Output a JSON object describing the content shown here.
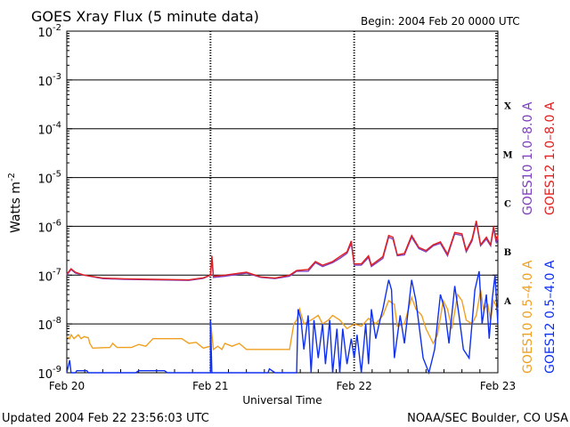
{
  "chart_data": {
    "type": "line",
    "title": "GOES Xray Flux (5 minute data)",
    "begin_label": "Begin:  2004 Feb 20 0000 UTC",
    "xlabel": "Universal Time",
    "ylabel": "Watts m",
    "ylabel_exp": "-2",
    "x_ticks": [
      "Feb 20",
      "Feb 21",
      "Feb 22",
      "Feb 23"
    ],
    "x_range_days": [
      0,
      3
    ],
    "y_scale": "log",
    "y_range": [
      1e-09,
      0.01
    ],
    "y_ticks": [
      {
        "value": 0.01,
        "base": "10",
        "exp": "-2"
      },
      {
        "value": 0.001,
        "base": "10",
        "exp": "-3"
      },
      {
        "value": 0.0001,
        "base": "10",
        "exp": "-4"
      },
      {
        "value": 1e-05,
        "base": "10",
        "exp": "-5"
      },
      {
        "value": 1e-06,
        "base": "10",
        "exp": "-6"
      },
      {
        "value": 1e-07,
        "base": "10",
        "exp": "-7"
      },
      {
        "value": 1e-08,
        "base": "10",
        "exp": "-8"
      },
      {
        "value": 1e-09,
        "base": "10",
        "exp": "-9"
      }
    ],
    "grid": true,
    "flare_classes": [
      {
        "label": "X",
        "value": 0.0003
      },
      {
        "label": "M",
        "value": 3e-05
      },
      {
        "label": "C",
        "value": 3e-06
      },
      {
        "label": "B",
        "value": 3e-07
      },
      {
        "label": "A",
        "value": 3e-08
      }
    ],
    "legend_right_1": [
      {
        "name": "GOES10 1.0–8.0 A",
        "color": "#8040c0"
      },
      {
        "name": "GOES12 1.0–8.0 A",
        "color": "#e02020"
      }
    ],
    "legend_right_2": [
      {
        "name": "GOES10 0.5–4.0 A",
        "color": "#f0a020"
      },
      {
        "name": "GOES12 0.5–4.0 A",
        "color": "#1030f0"
      }
    ],
    "series": [
      {
        "name": "GOES10 1.0–8.0 A",
        "color": "#8040c0",
        "points": [
          [
            0,
            1e-07
          ],
          [
            0.03,
            1.3e-07
          ],
          [
            0.06,
            1.1e-07
          ],
          [
            0.12,
            1e-07
          ],
          [
            0.25,
            8.5e-08
          ],
          [
            0.4,
            8.2e-08
          ],
          [
            0.6,
            8e-08
          ],
          [
            0.85,
            7.8e-08
          ],
          [
            0.95,
            8.6e-08
          ],
          [
            1.0,
            1e-07
          ],
          [
            1.01,
            2.2e-07
          ],
          [
            1.02,
            9e-08
          ],
          [
            1.1,
            9.5e-08
          ],
          [
            1.25,
            1.1e-07
          ],
          [
            1.35,
            9e-08
          ],
          [
            1.45,
            8.5e-08
          ],
          [
            1.55,
            9.5e-08
          ],
          [
            1.6,
            1.2e-07
          ],
          [
            1.68,
            1.2e-07
          ],
          [
            1.73,
            1.8e-07
          ],
          [
            1.78,
            1.5e-07
          ],
          [
            1.85,
            1.8e-07
          ],
          [
            1.9,
            2.2e-07
          ],
          [
            1.95,
            2.8e-07
          ],
          [
            1.98,
            4.5e-07
          ],
          [
            2.0,
            1.6e-07
          ],
          [
            2.05,
            1.6e-07
          ],
          [
            2.1,
            2.3e-07
          ],
          [
            2.12,
            1.5e-07
          ],
          [
            2.2,
            2.2e-07
          ],
          [
            2.24,
            6e-07
          ],
          [
            2.27,
            5.5e-07
          ],
          [
            2.3,
            2.5e-07
          ],
          [
            2.35,
            2.6e-07
          ],
          [
            2.4,
            6e-07
          ],
          [
            2.45,
            3.5e-07
          ],
          [
            2.5,
            3e-07
          ],
          [
            2.55,
            4e-07
          ],
          [
            2.6,
            4.5e-07
          ],
          [
            2.65,
            2.5e-07
          ],
          [
            2.7,
            7e-07
          ],
          [
            2.75,
            6.5e-07
          ],
          [
            2.78,
            3e-07
          ],
          [
            2.82,
            5e-07
          ],
          [
            2.85,
            1.2e-06
          ],
          [
            2.88,
            4e-07
          ],
          [
            2.92,
            5.5e-07
          ],
          [
            2.95,
            4e-07
          ],
          [
            2.97,
            9e-07
          ],
          [
            2.99,
            4.5e-07
          ],
          [
            3.0,
            6e-07
          ]
        ]
      },
      {
        "name": "GOES12 1.0–8.0 A",
        "color": "#e02020",
        "points": [
          [
            0,
            1.05e-07
          ],
          [
            0.03,
            1.35e-07
          ],
          [
            0.06,
            1.15e-07
          ],
          [
            0.12,
            1e-07
          ],
          [
            0.25,
            8.7e-08
          ],
          [
            0.4,
            8.4e-08
          ],
          [
            0.6,
            8.2e-08
          ],
          [
            0.85,
            8e-08
          ],
          [
            0.95,
            8.8e-08
          ],
          [
            1.0,
            1e-07
          ],
          [
            1.01,
            2.5e-07
          ],
          [
            1.02,
            9.5e-08
          ],
          [
            1.1,
            1e-07
          ],
          [
            1.25,
            1.15e-07
          ],
          [
            1.35,
            9.2e-08
          ],
          [
            1.45,
            8.7e-08
          ],
          [
            1.55,
            1e-07
          ],
          [
            1.6,
            1.25e-07
          ],
          [
            1.68,
            1.3e-07
          ],
          [
            1.73,
            1.9e-07
          ],
          [
            1.78,
            1.6e-07
          ],
          [
            1.85,
            1.9e-07
          ],
          [
            1.9,
            2.4e-07
          ],
          [
            1.95,
            3e-07
          ],
          [
            1.98,
            5e-07
          ],
          [
            2.0,
            1.7e-07
          ],
          [
            2.05,
            1.7e-07
          ],
          [
            2.1,
            2.5e-07
          ],
          [
            2.12,
            1.6e-07
          ],
          [
            2.2,
            2.4e-07
          ],
          [
            2.24,
            6.5e-07
          ],
          [
            2.27,
            6e-07
          ],
          [
            2.3,
            2.6e-07
          ],
          [
            2.35,
            2.8e-07
          ],
          [
            2.4,
            6.5e-07
          ],
          [
            2.45,
            3.7e-07
          ],
          [
            2.5,
            3.2e-07
          ],
          [
            2.55,
            4.2e-07
          ],
          [
            2.6,
            4.8e-07
          ],
          [
            2.65,
            2.7e-07
          ],
          [
            2.7,
            7.5e-07
          ],
          [
            2.75,
            7e-07
          ],
          [
            2.78,
            3.2e-07
          ],
          [
            2.82,
            5.5e-07
          ],
          [
            2.85,
            1.3e-06
          ],
          [
            2.88,
            4.2e-07
          ],
          [
            2.92,
            6e-07
          ],
          [
            2.95,
            4.2e-07
          ],
          [
            2.97,
            1e-06
          ],
          [
            2.99,
            5e-07
          ],
          [
            3.0,
            6.5e-07
          ]
        ]
      },
      {
        "name": "GOES10 0.5–4.0 A",
        "color": "#f0a020",
        "points": [
          [
            0,
            5.5e-09
          ],
          [
            0.02,
            5e-09
          ],
          [
            0.03,
            6e-09
          ],
          [
            0.05,
            5e-09
          ],
          [
            0.08,
            6e-09
          ],
          [
            0.1,
            5e-09
          ],
          [
            0.12,
            5.5e-09
          ],
          [
            0.15,
            5.2e-09
          ],
          [
            0.16,
            4e-09
          ],
          [
            0.18,
            3.2e-09
          ],
          [
            0.3,
            3.3e-09
          ],
          [
            0.32,
            4e-09
          ],
          [
            0.35,
            3.3e-09
          ],
          [
            0.45,
            3.3e-09
          ],
          [
            0.5,
            3.8e-09
          ],
          [
            0.55,
            3.5e-09
          ],
          [
            0.6,
            5e-09
          ],
          [
            0.8,
            5e-09
          ],
          [
            0.85,
            4e-09
          ],
          [
            0.9,
            4.2e-09
          ],
          [
            0.95,
            3.2e-09
          ],
          [
            1.0,
            3.5e-09
          ],
          [
            1.0,
            1.2e-08
          ],
          [
            1.02,
            3e-09
          ],
          [
            1.05,
            3.5e-09
          ],
          [
            1.08,
            3e-09
          ],
          [
            1.1,
            4e-09
          ],
          [
            1.15,
            3.5e-09
          ],
          [
            1.2,
            4e-09
          ],
          [
            1.25,
            3e-09
          ],
          [
            1.45,
            3e-09
          ],
          [
            1.5,
            3e-09
          ],
          [
            1.55,
            3e-09
          ],
          [
            1.58,
            1e-08
          ],
          [
            1.6,
            1.2e-08
          ],
          [
            1.62,
            2e-08
          ],
          [
            1.65,
            1e-08
          ],
          [
            1.7,
            1.2e-08
          ],
          [
            1.75,
            1.5e-08
          ],
          [
            1.78,
            1e-08
          ],
          [
            1.82,
            1.2e-08
          ],
          [
            1.85,
            1.5e-08
          ],
          [
            1.9,
            1.2e-08
          ],
          [
            1.95,
            8e-09
          ],
          [
            2.0,
            1e-08
          ],
          [
            2.05,
            9e-09
          ],
          [
            2.1,
            1.3e-08
          ],
          [
            2.15,
            1e-08
          ],
          [
            2.2,
            1.5e-08
          ],
          [
            2.24,
            3e-08
          ],
          [
            2.28,
            2.5e-08
          ],
          [
            2.3,
            9e-09
          ],
          [
            2.35,
            1e-08
          ],
          [
            2.4,
            3.5e-08
          ],
          [
            2.43,
            2e-08
          ],
          [
            2.47,
            1.5e-08
          ],
          [
            2.5,
            8e-09
          ],
          [
            2.55,
            4e-09
          ],
          [
            2.58,
            6e-09
          ],
          [
            2.62,
            3e-08
          ],
          [
            2.65,
            2e-08
          ],
          [
            2.68,
            8e-09
          ],
          [
            2.72,
            4e-08
          ],
          [
            2.75,
            3e-08
          ],
          [
            2.78,
            1.2e-08
          ],
          [
            2.82,
            1e-08
          ],
          [
            2.85,
            1.5e-08
          ],
          [
            2.88,
            5e-08
          ],
          [
            2.9,
            2e-08
          ],
          [
            2.93,
            2.5e-08
          ],
          [
            2.95,
            1.2e-08
          ],
          [
            2.97,
            3e-08
          ],
          [
            3.0,
            2e-08
          ]
        ]
      },
      {
        "name": "GOES12 0.5–4.0 A",
        "color": "#1030f0",
        "points": [
          [
            0,
            1e-09
          ],
          [
            0.02,
            1.8e-09
          ],
          [
            0.03,
            8e-10
          ],
          [
            0.06,
            8e-10
          ],
          [
            0.07,
            1.1e-09
          ],
          [
            0.14,
            1.1e-09
          ],
          [
            0.15,
            8e-10
          ],
          [
            0.48,
            8e-10
          ],
          [
            0.5,
            1.1e-09
          ],
          [
            0.68,
            1.1e-09
          ],
          [
            0.7,
            8e-10
          ],
          [
            1.0,
            8e-10
          ],
          [
            1.0,
            1.2e-08
          ],
          [
            1.01,
            8e-10
          ],
          [
            1.4,
            8e-10
          ],
          [
            1.41,
            1.2e-09
          ],
          [
            1.45,
            8e-10
          ],
          [
            1.6,
            8e-10
          ],
          [
            1.61,
            2e-08
          ],
          [
            1.63,
            1.2e-08
          ],
          [
            1.65,
            3e-09
          ],
          [
            1.68,
            1.5e-08
          ],
          [
            1.7,
            1e-09
          ],
          [
            1.72,
            1.2e-08
          ],
          [
            1.75,
            2e-09
          ],
          [
            1.78,
            1e-08
          ],
          [
            1.8,
            1.5e-09
          ],
          [
            1.83,
            1.2e-08
          ],
          [
            1.85,
            1e-09
          ],
          [
            1.88,
            8e-09
          ],
          [
            1.9,
            1e-09
          ],
          [
            1.92,
            8e-09
          ],
          [
            1.95,
            1.5e-09
          ],
          [
            1.98,
            5e-09
          ],
          [
            2.0,
            2e-09
          ],
          [
            2.02,
            6e-09
          ],
          [
            2.05,
            1e-09
          ],
          [
            2.08,
            1e-08
          ],
          [
            2.1,
            1.5e-09
          ],
          [
            2.12,
            2e-08
          ],
          [
            2.15,
            5e-09
          ],
          [
            2.18,
            1.2e-08
          ],
          [
            2.2,
            2e-08
          ],
          [
            2.24,
            8e-08
          ],
          [
            2.26,
            5e-08
          ],
          [
            2.28,
            2e-09
          ],
          [
            2.32,
            1.5e-08
          ],
          [
            2.35,
            4e-09
          ],
          [
            2.4,
            8e-08
          ],
          [
            2.43,
            3e-08
          ],
          [
            2.45,
            1e-08
          ],
          [
            2.48,
            2e-09
          ],
          [
            2.52,
            1e-09
          ],
          [
            2.56,
            3e-09
          ],
          [
            2.6,
            4e-08
          ],
          [
            2.63,
            2e-08
          ],
          [
            2.66,
            4e-09
          ],
          [
            2.7,
            6e-08
          ],
          [
            2.73,
            1.5e-08
          ],
          [
            2.76,
            3e-09
          ],
          [
            2.8,
            2e-09
          ],
          [
            2.84,
            5e-08
          ],
          [
            2.87,
            1.2e-07
          ],
          [
            2.89,
            1e-08
          ],
          [
            2.92,
            4e-08
          ],
          [
            2.94,
            5e-09
          ],
          [
            2.96,
            3e-08
          ],
          [
            2.98,
            1e-07
          ],
          [
            3.0,
            1e-08
          ]
        ]
      }
    ]
  },
  "footer": {
    "updated": "Updated 2004 Feb 22 23:56:03 UTC",
    "source": "NOAA/SEC Boulder, CO USA"
  }
}
